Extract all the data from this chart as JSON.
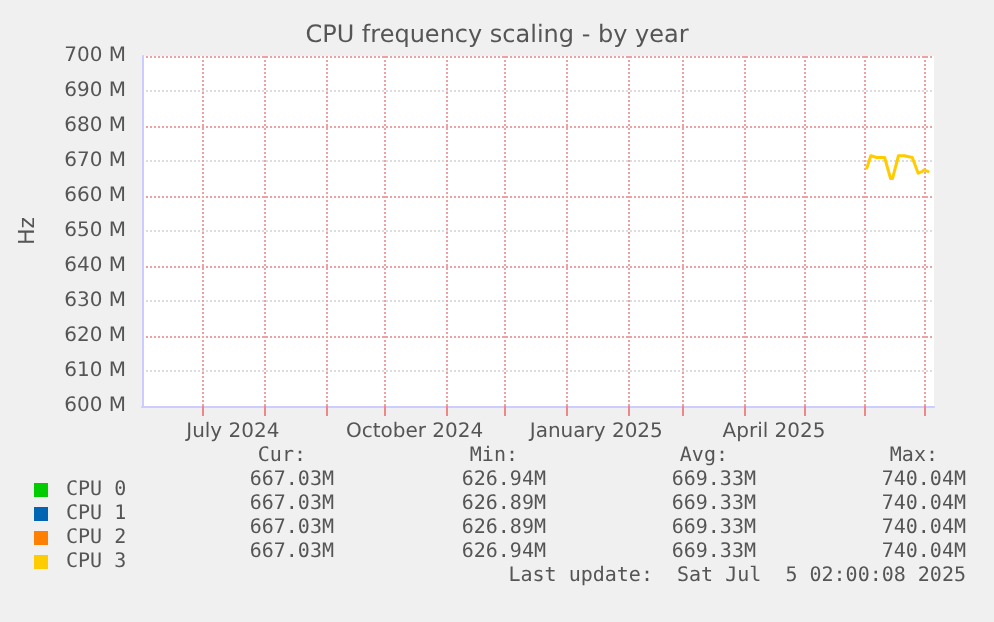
{
  "chart_data": {
    "type": "line",
    "title": "CPU frequency scaling - by year",
    "ylabel": "Hz",
    "x": [
      "2025-06-02",
      "2025-06-04",
      "2025-06-07",
      "2025-06-11",
      "2025-06-14",
      "2025-06-15",
      "2025-06-18",
      "2025-06-21",
      "2025-06-25",
      "2025-06-28",
      "2025-06-30",
      "2025-07-01",
      "2025-07-03"
    ],
    "series": [
      {
        "name": "CPU 0",
        "color": "#00cc00",
        "values": [
          null,
          null,
          null,
          null,
          null,
          null,
          null,
          null,
          null,
          null,
          null,
          null,
          null
        ]
      },
      {
        "name": "CPU 1",
        "color": "#0066b3",
        "values": [
          null,
          null,
          null,
          null,
          null,
          null,
          null,
          null,
          null,
          null,
          null,
          null,
          null
        ]
      },
      {
        "name": "CPU 2",
        "color": "#ff8000",
        "values": [
          null,
          null,
          null,
          null,
          null,
          null,
          null,
          null,
          null,
          null,
          null,
          null,
          null
        ]
      },
      {
        "name": "CPU 3",
        "color": "#ffcc00",
        "values": [
          668,
          671.5,
          671,
          671,
          665,
          665,
          671.5,
          671.5,
          671,
          666.5,
          667,
          667.5,
          667
        ]
      }
    ],
    "xlim": [
      "2024-05-31",
      "2025-07-06"
    ],
    "xticks": [
      {
        "value": "2024-07-01",
        "label": null
      },
      {
        "value": "2024-08-01",
        "label": null
      },
      {
        "value": "2024-09-01",
        "label": null
      },
      {
        "value": "2024-10-01",
        "label": null
      },
      {
        "value": "2024-11-01",
        "label": null
      },
      {
        "value": "2024-12-01",
        "label": null
      },
      {
        "value": "2025-01-01",
        "label": null
      },
      {
        "value": "2025-02-01",
        "label": null
      },
      {
        "value": "2025-03-01",
        "label": null
      },
      {
        "value": "2025-04-01",
        "label": null
      },
      {
        "value": "2025-05-01",
        "label": null
      },
      {
        "value": "2025-06-01",
        "label": null
      },
      {
        "value": "2025-07-01",
        "label": null
      },
      {
        "value": "2024-07-16",
        "label": "July 2024"
      },
      {
        "value": "2024-10-16",
        "label": "October 2024"
      },
      {
        "value": "2025-01-16",
        "label": "January 2025"
      },
      {
        "value": "2025-04-16",
        "label": "April 2025"
      }
    ],
    "ylim": [
      600,
      700
    ],
    "yticks": [
      {
        "value": 600,
        "label": "600 M"
      },
      {
        "value": 610,
        "label": "610 M"
      },
      {
        "value": 620,
        "label": "620 M"
      },
      {
        "value": 630,
        "label": "630 M"
      },
      {
        "value": 640,
        "label": "640 M"
      },
      {
        "value": 650,
        "label": "650 M"
      },
      {
        "value": 660,
        "label": "660 M"
      },
      {
        "value": 670,
        "label": "670 M"
      },
      {
        "value": 680,
        "label": "680 M"
      },
      {
        "value": 690,
        "label": "690 M"
      },
      {
        "value": 700,
        "label": "700 M"
      }
    ],
    "grid": true,
    "legend": "bottom",
    "marker": "none",
    "line_style": "solid",
    "annotations": [
      "Cur:",
      "Min:",
      "Avg:",
      "Max:",
      "667.03M",
      "626.94M",
      "669.33M",
      "740.04M",
      "667.03M",
      "626.89M",
      "669.33M",
      "740.04M",
      "667.03M",
      "626.89M",
      "669.33M",
      "740.04M",
      "667.03M",
      "626.94M",
      "669.33M",
      "740.04M",
      "Last update:  Sat Jul  5 02:00:08 2025"
    ]
  }
}
